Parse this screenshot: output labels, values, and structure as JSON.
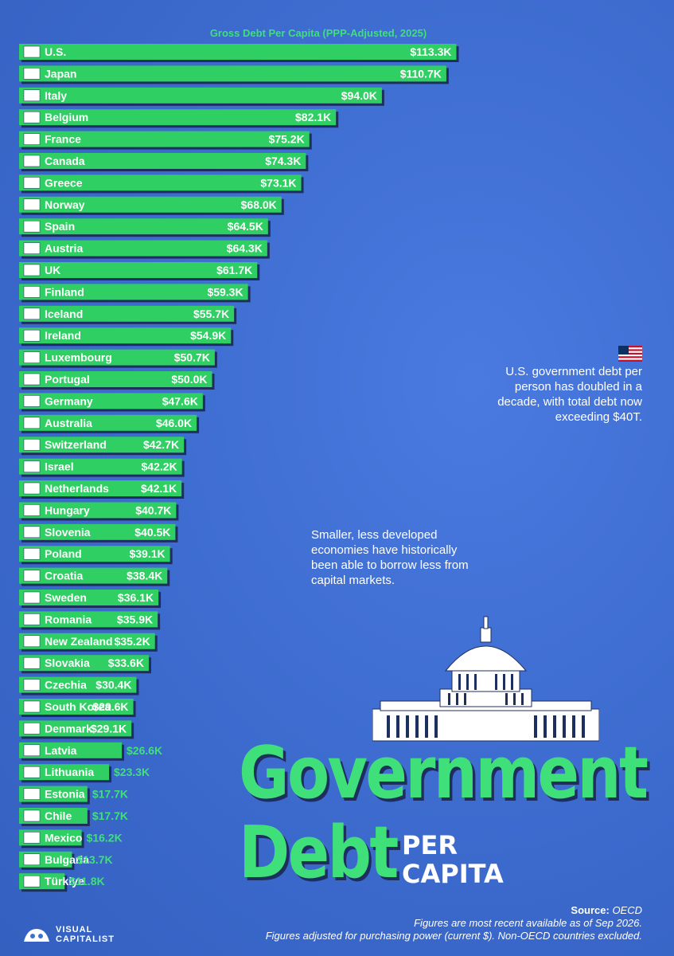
{
  "chart_data": {
    "type": "bar",
    "orientation": "horizontal",
    "subtitle": "Gross Debt Per Capita (PPP-Adjusted, 2025)",
    "value_unit": "USD thousands",
    "xlim": [
      0,
      120
    ],
    "bar_color": "#2fcf63",
    "categories": [
      "U.S.",
      "Japan",
      "Italy",
      "Belgium",
      "France",
      "Canada",
      "Greece",
      "Norway",
      "Spain",
      "Austria",
      "UK",
      "Finland",
      "Iceland",
      "Ireland",
      "Luxembourg",
      "Portugal",
      "Germany",
      "Australia",
      "Switzerland",
      "Israel",
      "Netherlands",
      "Hungary",
      "Slovenia",
      "Poland",
      "Croatia",
      "Sweden",
      "Romania",
      "New Zealand",
      "Slovakia",
      "Czechia",
      "South Korea",
      "Denmark",
      "Latvia",
      "Lithuania",
      "Estonia",
      "Chile",
      "Mexico",
      "Bulgaria",
      "Türkiye"
    ],
    "values": [
      113.3,
      110.7,
      94.0,
      82.1,
      75.2,
      74.3,
      73.1,
      68.0,
      64.5,
      64.3,
      61.7,
      59.3,
      55.7,
      54.9,
      50.7,
      50.0,
      47.6,
      46.0,
      42.7,
      42.2,
      42.1,
      40.7,
      40.5,
      39.1,
      38.4,
      36.1,
      35.9,
      35.2,
      33.6,
      30.4,
      29.6,
      29.1,
      26.6,
      23.3,
      17.7,
      17.7,
      16.2,
      13.7,
      11.8
    ],
    "labels": [
      "$113.3K",
      "$110.7K",
      "$94.0K",
      "$82.1K",
      "$75.2K",
      "$74.3K",
      "$73.1K",
      "$68.0K",
      "$64.5K",
      "$64.3K",
      "$61.7K",
      "$59.3K",
      "$55.7K",
      "$54.9K",
      "$50.7K",
      "$50.0K",
      "$47.6K",
      "$46.0K",
      "$42.7K",
      "$42.2K",
      "$42.1K",
      "$40.7K",
      "$40.5K",
      "$39.1K",
      "$38.4K",
      "$36.1K",
      "$35.9K",
      "$35.2K",
      "$33.6K",
      "$30.4K",
      "$29.6K",
      "$29.1K",
      "$26.6K",
      "$23.3K",
      "$17.7K",
      "$17.7K",
      "$16.2K",
      "$13.7K",
      "$11.8K"
    ]
  },
  "title": {
    "line1": "Government",
    "line2": "Debt",
    "line3a": "PER",
    "line3b": "CAPITA"
  },
  "annotations": {
    "us_note": "U.S. government debt per person has doubled in a decade, with total debt now exceeding $40T.",
    "small_note": "Smaller, less developed economies have historically been able to borrow less from capital markets."
  },
  "source": {
    "label": "Source:",
    "name": "OECD",
    "note1": "Figures are most recent available as of Sep 2026.",
    "note2": "Figures adjusted for purchasing power (current $). Non-OECD countries excluded."
  },
  "brand": {
    "line1": "VISUAL",
    "line2": "CAPITALIST"
  },
  "colors": {
    "background": "#3f6fd1",
    "bar": "#2fcf63",
    "accent_text": "#3fe07a",
    "shadow": "#1d2f5e"
  }
}
